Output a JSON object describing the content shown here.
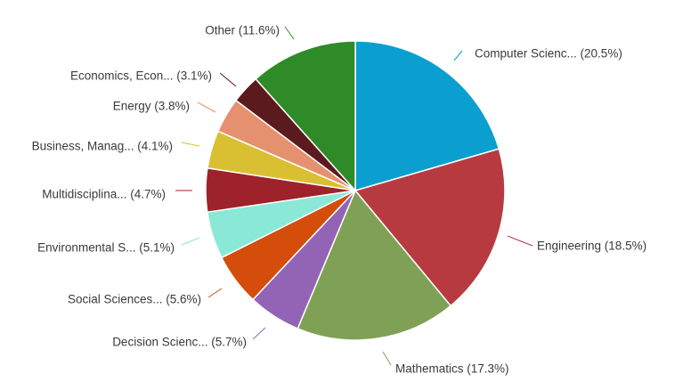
{
  "chart_data": {
    "type": "pie",
    "start": "12 o'clock",
    "direction": "clockwise",
    "slices": [
      {
        "label": "Computer Scienc...",
        "value": 20.5,
        "text": "Computer Scienc... (20.5%)",
        "color": "#0b9fcf"
      },
      {
        "label": "Engineering",
        "value": 18.5,
        "text": "Engineering (18.5%)",
        "color": "#b83a41"
      },
      {
        "label": "Mathematics",
        "value": 17.3,
        "text": "Mathematics (17.3%)",
        "color": "#7fa156"
      },
      {
        "label": "Decision Scienc...",
        "value": 5.7,
        "text": "Decision Scienc... (5.7%)",
        "color": "#9364b6"
      },
      {
        "label": "Social Sciences...",
        "value": 5.6,
        "text": "Social Sciences... (5.6%)",
        "color": "#d44d0b"
      },
      {
        "label": "Environmental S...",
        "value": 5.1,
        "text": "Environmental S... (5.1%)",
        "color": "#8ae8d6"
      },
      {
        "label": "Multidisciplina...",
        "value": 4.7,
        "text": "Multidisciplina... (4.7%)",
        "color": "#9e2229"
      },
      {
        "label": "Business, Manag...",
        "value": 4.1,
        "text": "Business, Manag... (4.1%)",
        "color": "#d9c033"
      },
      {
        "label": "Energy",
        "value": 3.8,
        "text": "Energy (3.8%)",
        "color": "#e59170"
      },
      {
        "label": "Economics, Econ...",
        "value": 3.1,
        "text": "Economics, Econ... (3.1%)",
        "color": "#5a1a1e"
      },
      {
        "label": "Other",
        "value": 11.6,
        "text": "Other (11.6%)",
        "color": "#2e8b27"
      }
    ]
  }
}
